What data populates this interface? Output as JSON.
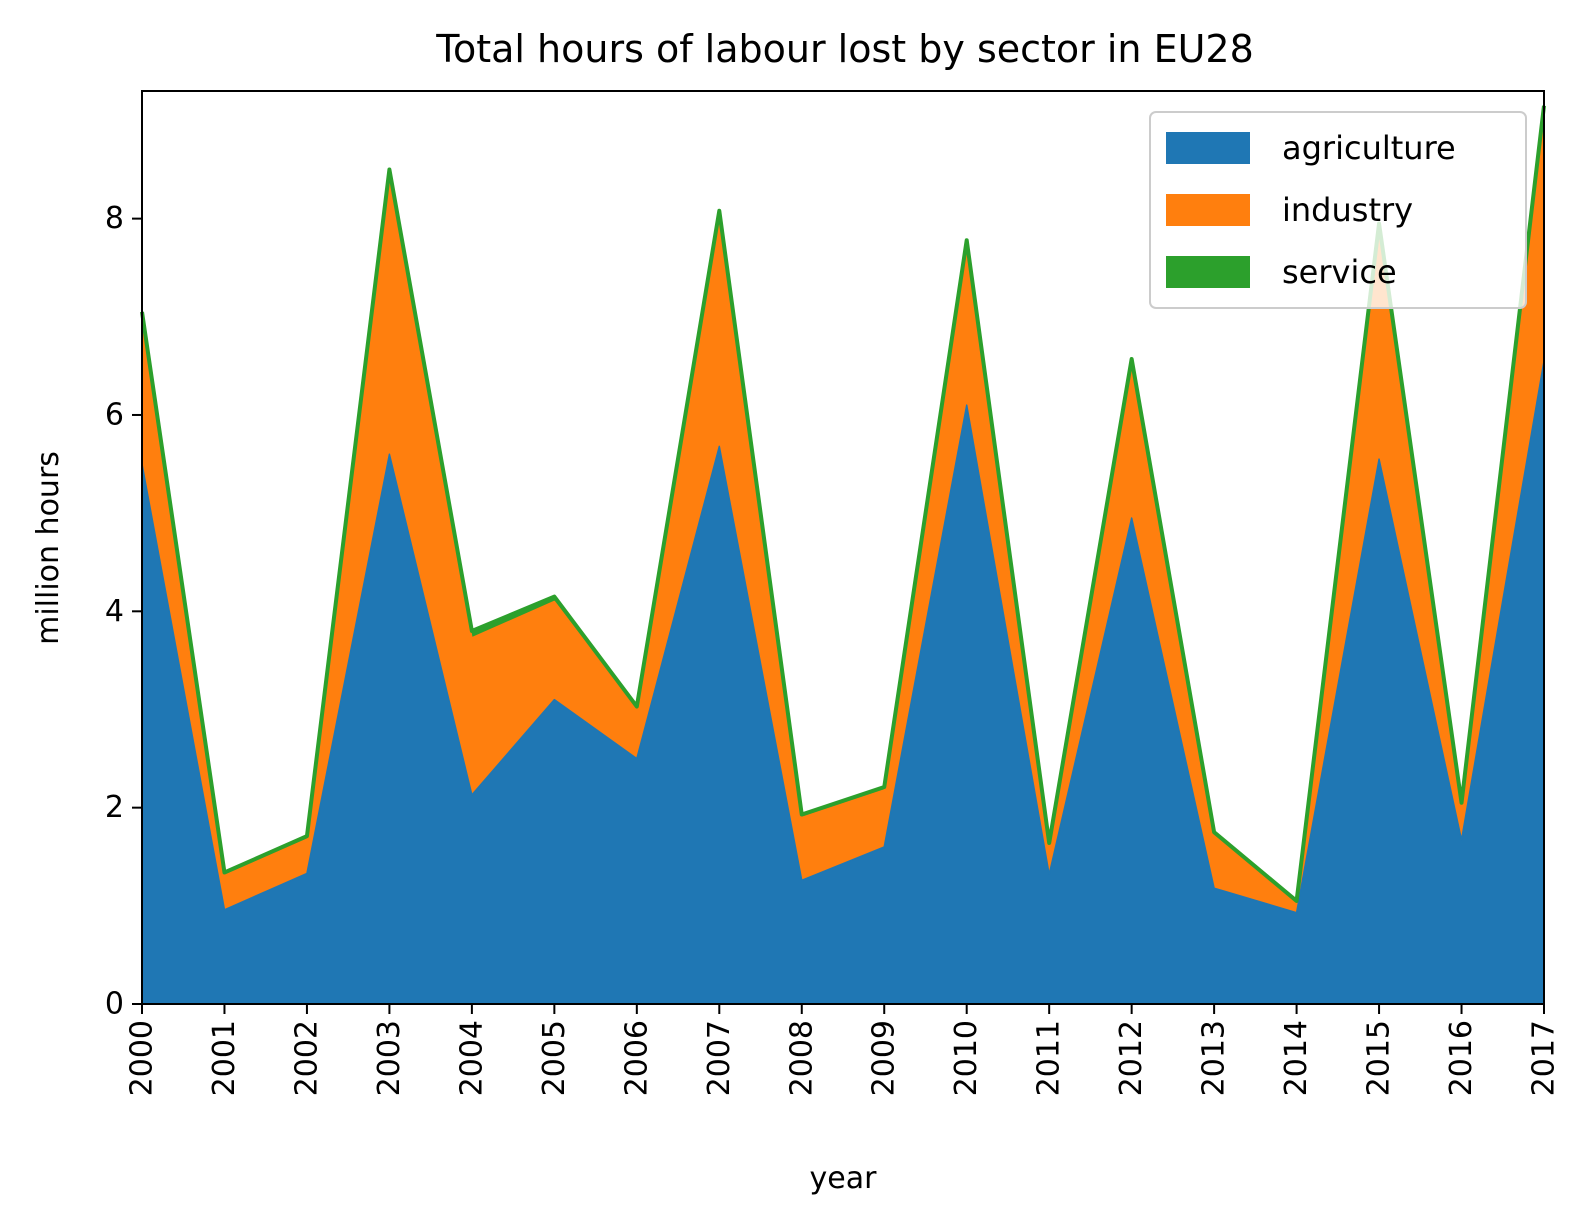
{
  "chart_data": {
    "type": "area",
    "title": "Total hours of labour lost by sector in EU28",
    "xlabel": "year",
    "ylabel": "million hours",
    "categories": [
      "2000",
      "2001",
      "2002",
      "2003",
      "2004",
      "2005",
      "2006",
      "2007",
      "2008",
      "2009",
      "2010",
      "2011",
      "2012",
      "2013",
      "2014",
      "2015",
      "2016",
      "2017"
    ],
    "ylim": [
      0,
      9.3
    ],
    "yticks": [
      "0",
      "2",
      "4",
      "6",
      "8"
    ],
    "stacked": true,
    "legend_position": "top-right",
    "grid": false,
    "series": [
      {
        "name": "agriculture",
        "color": "#1f77b4",
        "values": [
          5.5,
          0.96,
          1.33,
          5.6,
          2.13,
          3.1,
          2.5,
          5.68,
          1.26,
          1.6,
          6.1,
          1.32,
          4.95,
          1.18,
          0.93,
          5.55,
          1.67,
          6.55
        ]
      },
      {
        "name": "industry",
        "color": "#ff7f0e",
        "values": [
          1.5,
          0.35,
          0.35,
          2.8,
          1.6,
          1.0,
          0.5,
          2.3,
          0.64,
          0.58,
          1.6,
          0.3,
          1.55,
          0.54,
          0.1,
          2.3,
          0.35,
          2.45
        ]
      },
      {
        "name": "service",
        "color": "#2ca02c",
        "values": [
          0.05,
          0.03,
          0.03,
          0.1,
          0.07,
          0.05,
          0.03,
          0.1,
          0.03,
          0.03,
          0.08,
          0.02,
          0.07,
          0.03,
          0.02,
          0.1,
          0.03,
          0.15
        ]
      }
    ]
  }
}
